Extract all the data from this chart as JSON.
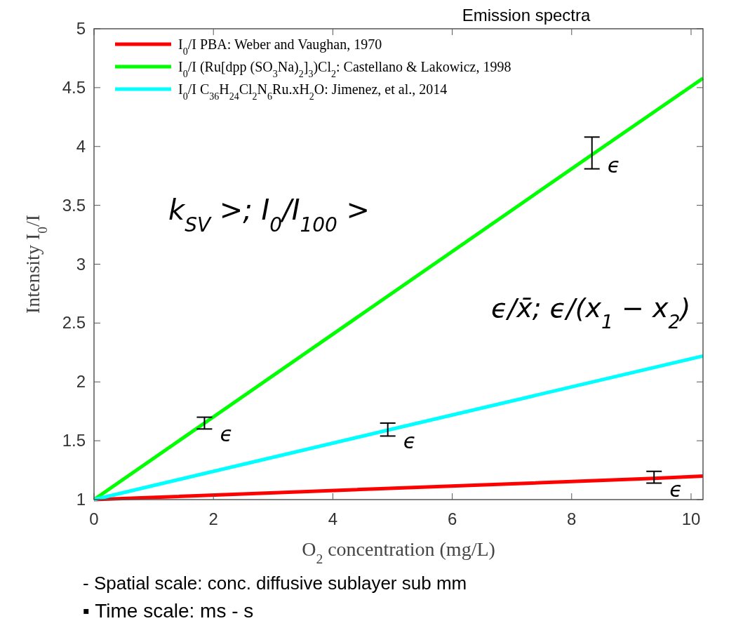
{
  "chart_data": {
    "type": "line",
    "xlabel": "O$_{2}$ concentration (mg/L)",
    "ylabel": "Intensity I$_{0}$/I",
    "xlim": [
      0,
      10.2
    ],
    "ylim": [
      1,
      5
    ],
    "xticks": [
      0,
      2,
      4,
      6,
      8,
      10
    ],
    "yticks": [
      1,
      1.5,
      2,
      2.5,
      3,
      3.5,
      4,
      4.5,
      5
    ],
    "grid": false,
    "legend": "top left",
    "marker": "none",
    "line_style": "solid",
    "series": [
      {
        "name": "I$_{0}$/I PBA: Weber and Vaughan, 1970",
        "color": "#ff0000",
        "x": [
          0,
          9.38,
          10.2
        ],
        "values": [
          1,
          1.18,
          1.2
        ],
        "errors": [
          null,
          [
            1.14,
            1.24
          ],
          null
        ]
      },
      {
        "name": "I$_{0}$/I (Ru[dpp (SO$_{3}$Na)$_{2}$]$_{3}$)Cl$_{2}$: Castellano & Lakowicz, 1998",
        "color": "#00ff00",
        "x": [
          0,
          1.85,
          8.34,
          10.2
        ],
        "values": [
          1,
          1.65,
          3.93,
          4.58
        ],
        "errors": [
          null,
          [
            1.6,
            1.7
          ],
          [
            3.81,
            4.08
          ],
          null
        ]
      },
      {
        "name": "I$_{0}$/I C$_{36}$H$_{24}$Cl$_{2}$N$_{6}$Ru.xH$_{2}$O: Jimenez, et al., 2014",
        "color": "#00ffff",
        "x": [
          0,
          4.92,
          10.2
        ],
        "values": [
          1,
          1.59,
          2.22
        ],
        "errors": [
          null,
          [
            1.54,
            1.65
          ],
          null
        ]
      }
    ],
    "annotations": [
      "k$_{SV}$ >; I$_{0}$/I$_{100}$ >",
      "ϵ/x̄; ϵ/(x$_{1}$ − x$_{2}$)",
      "Emission spectra",
      "-   Spatial scale: conc. diffusive sublayer sub mm",
      "▪   Time scale: ms - s",
      {
        "text": "ϵ",
        "x": 1.85,
        "y": 1.65
      },
      {
        "text": "ϵ",
        "x": 4.92,
        "y": 1.59
      },
      {
        "text": "ϵ",
        "x": 8.34,
        "y": 3.93
      },
      {
        "text": "ϵ",
        "x": 9.38,
        "y": 1.18
      }
    ]
  }
}
